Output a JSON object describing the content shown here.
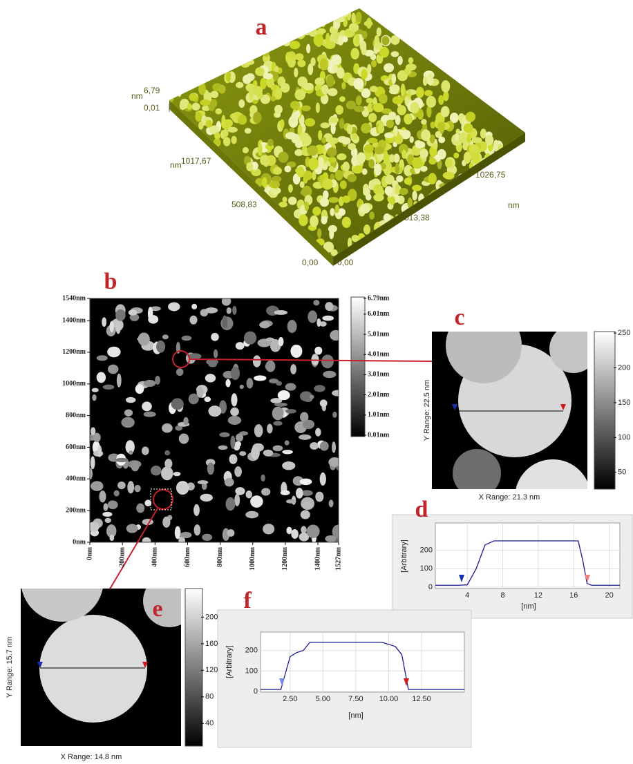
{
  "panel_a": {
    "label": "a",
    "z_unit": "nm",
    "z_max": "6,79",
    "z_min": "0,01",
    "y_unit": "nm",
    "y_max": "1017,67",
    "y_mid": "508,83",
    "y_min": "0,00",
    "x_min": "0,00",
    "x_mid": "513,38",
    "x_max": "1026,75",
    "x_unit": "nm"
  },
  "panel_b": {
    "label": "b",
    "ylim": [
      0,
      1540
    ],
    "xlim": [
      0,
      1527
    ],
    "yticks": [
      {
        "value": 1540,
        "label": "1540nm"
      },
      {
        "value": 1400,
        "label": "1400nm"
      },
      {
        "value": 1200,
        "label": "1200nm"
      },
      {
        "value": 1000,
        "label": "1000nm"
      },
      {
        "value": 800,
        "label": "800nm"
      },
      {
        "value": 600,
        "label": "600nm"
      },
      {
        "value": 400,
        "label": "400nm"
      },
      {
        "value": 200,
        "label": "200nm"
      },
      {
        "value": 0,
        "label": "0nm"
      }
    ],
    "xticks": [
      {
        "value": 0,
        "label": "0nm"
      },
      {
        "value": 200,
        "label": "200nm"
      },
      {
        "value": 400,
        "label": "400nm"
      },
      {
        "value": 600,
        "label": "600nm"
      },
      {
        "value": 800,
        "label": "800nm"
      },
      {
        "value": 1000,
        "label": "1000nm"
      },
      {
        "value": 1200,
        "label": "1200nm"
      },
      {
        "value": 1400,
        "label": "1400nm"
      },
      {
        "value": 1527,
        "label": "1527nm"
      }
    ],
    "colorbar_lim": [
      0.01,
      6.79
    ],
    "colorbar": [
      {
        "value": 6.79,
        "label": "6.79nm"
      },
      {
        "value": 6.01,
        "label": "6.01nm"
      },
      {
        "value": 5.01,
        "label": "5.01nm"
      },
      {
        "value": 4.01,
        "label": "4.01nm"
      },
      {
        "value": 3.01,
        "label": "3.01nm"
      },
      {
        "value": 2.01,
        "label": "2.01nm"
      },
      {
        "value": 1.01,
        "label": "1.01nm"
      },
      {
        "value": 0.01,
        "label": "0.01nm"
      }
    ]
  },
  "panel_c": {
    "label": "c",
    "y_range": "Y Range:  22.5 nm",
    "x_range": "X Range:  21.3 nm",
    "colorbar_lim": [
      26,
      252
    ],
    "colorbar": [
      250,
      200,
      150,
      100,
      50
    ]
  },
  "panel_d": {
    "label": "d",
    "ylabel": "[Arbitrary]",
    "xlabel": "[nm]",
    "xlim": [
      0.4,
      21.2
    ],
    "ylim": [
      -8,
      350
    ],
    "xticks": [
      4,
      8,
      12,
      16,
      20
    ],
    "yticks": [
      0,
      100,
      200
    ],
    "profile": {
      "x": [
        0.4,
        3,
        4,
        5,
        6,
        7,
        10,
        13,
        16.5,
        17,
        17.5,
        18,
        21.2
      ],
      "y": [
        10,
        10,
        12,
        100,
        230,
        252,
        252,
        252,
        252,
        150,
        20,
        10,
        10
      ]
    }
  },
  "panel_e": {
    "label": "e",
    "y_range": "Y Range:  15.7 nm",
    "x_range": "X Range:  14.8 nm",
    "colorbar_lim": [
      6,
      243
    ],
    "colorbar": [
      200,
      160,
      120,
      80,
      40
    ]
  },
  "panel_f": {
    "label": "f",
    "ylabel": "[Arbitrary]",
    "xlabel": "[nm]",
    "xlim": [
      0.25,
      15.76
    ],
    "ylim": [
      -3,
      290
    ],
    "yticks": [
      0,
      100,
      200
    ],
    "xticks": [
      {
        "value": 2.5,
        "label": "2.50"
      },
      {
        "value": 5,
        "label": "5.00"
      },
      {
        "value": 7.5,
        "label": "7.50"
      },
      {
        "value": 10,
        "label": "10.00"
      },
      {
        "value": 12.5,
        "label": "12.50"
      }
    ],
    "profile": {
      "x": [
        0.25,
        1.8,
        2.5,
        3,
        3.5,
        4,
        7,
        9.5,
        10.5,
        11,
        11.5,
        15.76
      ],
      "y": [
        10,
        10,
        170,
        190,
        200,
        240,
        240,
        240,
        220,
        180,
        10,
        10
      ]
    }
  }
}
